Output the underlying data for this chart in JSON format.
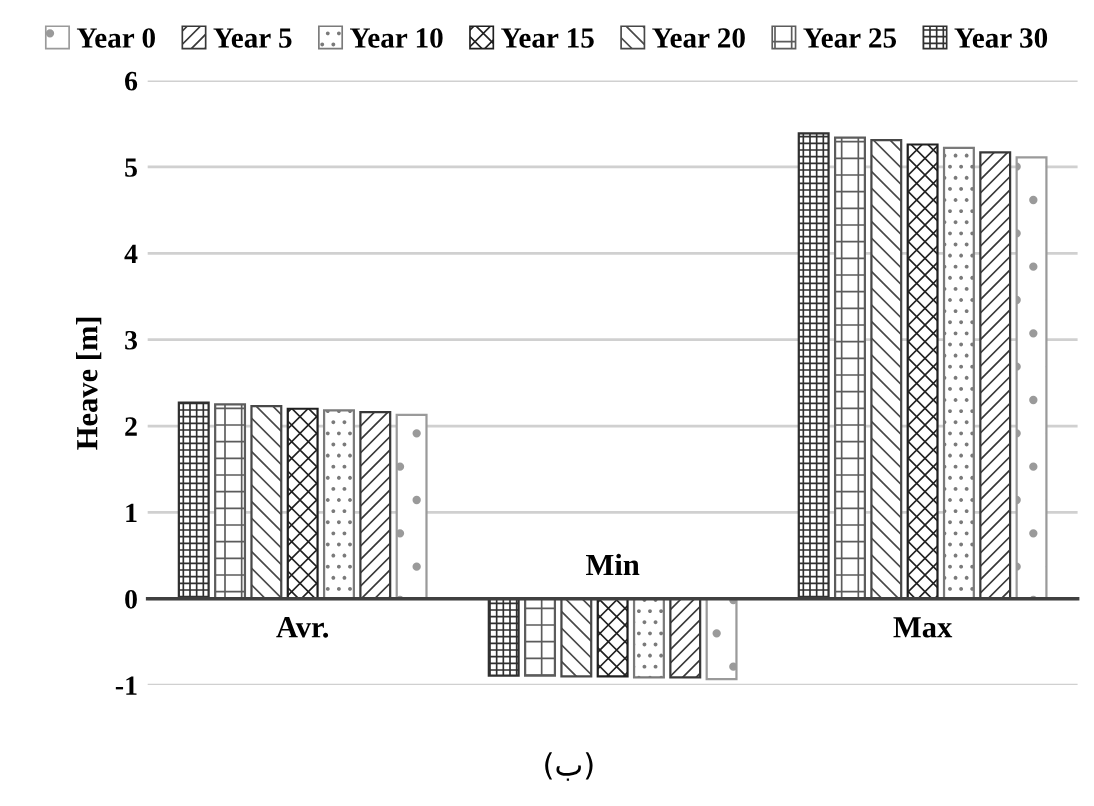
{
  "chart_data": {
    "type": "bar",
    "ylabel": "Heave [m]",
    "categories": [
      "Avr.",
      "Min",
      "Max"
    ],
    "series": [
      {
        "name": "Year 0",
        "color": "#9a9a9a",
        "values": [
          2.13,
          -0.93,
          5.11
        ]
      },
      {
        "name": "Year 5",
        "color": "#383838",
        "values": [
          2.16,
          -0.91,
          5.17
        ]
      },
      {
        "name": "Year 10",
        "color": "#7a7a7a",
        "values": [
          2.18,
          -0.91,
          5.22
        ]
      },
      {
        "name": "Year 15",
        "color": "#202020",
        "values": [
          2.2,
          -0.9,
          5.26
        ]
      },
      {
        "name": "Year 20",
        "color": "#484848",
        "values": [
          2.23,
          -0.9,
          5.31
        ]
      },
      {
        "name": "Year 25",
        "color": "#5c5c5c",
        "values": [
          2.25,
          -0.89,
          5.34
        ]
      },
      {
        "name": "Year 30",
        "color": "#303030",
        "values": [
          2.27,
          -0.89,
          5.39
        ]
      }
    ],
    "ylim": [
      -1,
      6
    ],
    "yticks": [
      -1,
      0,
      1,
      2,
      3,
      4,
      5,
      6
    ],
    "grid": "y",
    "legend": "top",
    "annotations": [
      "(ب)"
    ]
  }
}
